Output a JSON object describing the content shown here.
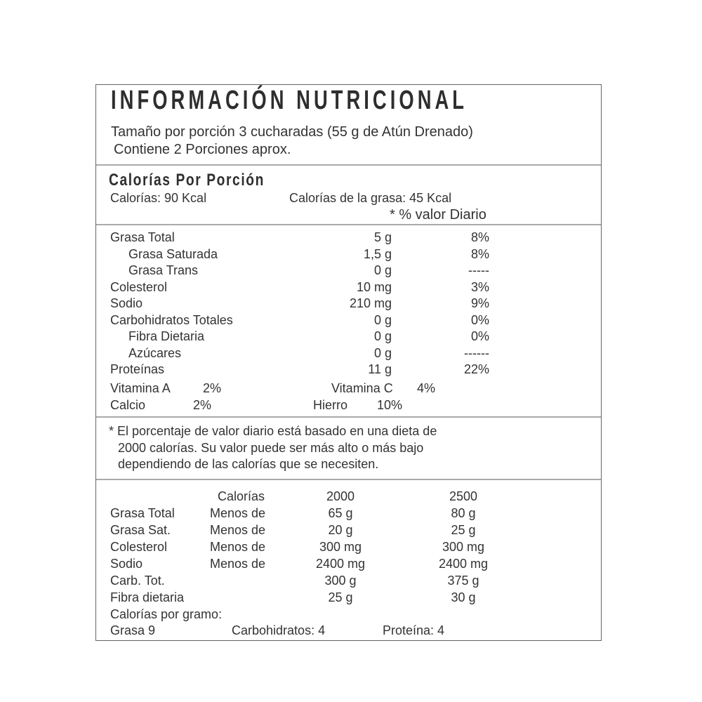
{
  "title": "INFORMACIÓN NUTRICIONAL",
  "serving": {
    "size": "Tamaño por porción 3 cucharadas (55 g de Atún Drenado)",
    "servings": "Contiene 2 Porciones aprox."
  },
  "calories": {
    "heading": "Calorías Por Porción",
    "calories": "Calorías: 90 Kcal",
    "fat_calories": "Calorías de la grasa: 45 Kcal",
    "daily_value_header": "* % valor Diario"
  },
  "nutrients": [
    {
      "name": "Grasa Total",
      "amount": "5 g",
      "dv": "8%",
      "indent": false
    },
    {
      "name": "Grasa Saturada",
      "amount": "1,5 g",
      "dv": "8%",
      "indent": true
    },
    {
      "name": "Grasa Trans",
      "amount": "0 g",
      "dv": "-----",
      "indent": true
    },
    {
      "name": "Colesterol",
      "amount": "10 mg",
      "dv": "3%",
      "indent": false
    },
    {
      "name": "Sodio",
      "amount": "210 mg",
      "dv": "9%",
      "indent": false
    },
    {
      "name": "Carbohidratos Totales",
      "amount": "0 g",
      "dv": "0%",
      "indent": false
    },
    {
      "name": "Fibra Dietaria",
      "amount": "0 g",
      "dv": "0%",
      "indent": true
    },
    {
      "name": "Azúcares",
      "amount": "0 g",
      "dv": "------",
      "indent": true
    },
    {
      "name": "Proteínas",
      "amount": "11 g",
      "dv": "22%",
      "indent": false
    }
  ],
  "vitamins": {
    "vit_a_label": "Vitamina A",
    "vit_a": "2%",
    "vit_c_label": "Vitamina C",
    "vit_c": "4%",
    "calcio_label": "Calcio",
    "calcio": "2%",
    "hierro_label": "Hierro",
    "hierro": "10%"
  },
  "footnote": [
    "* El porcentaje de valor diario está basado en una dieta de",
    "2000 calorías.   Su valor puede ser más alto o más bajo",
    "dependiendo de las calorías que se necesiten."
  ],
  "reference": {
    "header": {
      "label": "Calorías",
      "col1": "2000",
      "col2": "2500"
    },
    "rows": [
      {
        "name": "Grasa Total",
        "qual": "Menos de",
        "v1": "65 g",
        "v2": "80 g"
      },
      {
        "name": "Grasa Sat.",
        "qual": "Menos de",
        "v1": "20 g",
        "v2": "25 g"
      },
      {
        "name": "Colesterol",
        "qual": "Menos de",
        "v1": "300 mg",
        "v2": "300 mg"
      },
      {
        "name": "Sodio",
        "qual": "Menos de",
        "v1": "2400 mg",
        "v2": "2400 mg"
      },
      {
        "name": "Carb. Tot.",
        "qual": "",
        "v1": "300 g",
        "v2": "375 g"
      },
      {
        "name": "Fibra dietaria",
        "qual": "",
        "v1": "25 g",
        "v2": "30 g"
      }
    ],
    "per_gram_label": "Calorías por gramo:",
    "grasa": "Grasa 9",
    "carbs": "Carbohidratos: 4",
    "protein": "Proteína: 4"
  }
}
